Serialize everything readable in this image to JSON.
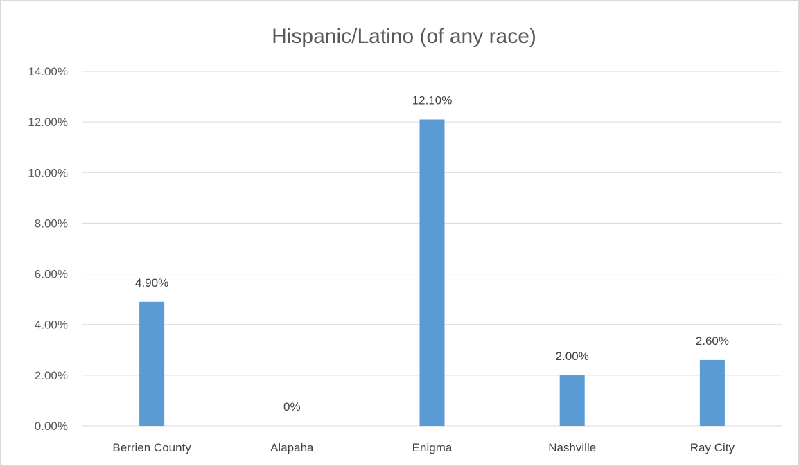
{
  "chart_data": {
    "type": "bar",
    "title": "Hispanic/Latino (of any race)",
    "categories": [
      "Berrien County",
      "Alapaha",
      "Enigma",
      "Nashville",
      "Ray City"
    ],
    "values": [
      4.9,
      0,
      12.1,
      2.0,
      2.6
    ],
    "data_labels": [
      "4.90%",
      "0%",
      "12.10%",
      "2.00%",
      "2.60%"
    ],
    "y_ticks": [
      "0.00%",
      "2.00%",
      "4.00%",
      "6.00%",
      "8.00%",
      "10.00%",
      "12.00%",
      "14.00%"
    ],
    "ylim": [
      0,
      14
    ],
    "y_step": 2,
    "grid": true,
    "legend": "none",
    "bar_color": "#5b9bd5",
    "grid_color": "#d9d9d9",
    "text_color": "#595959"
  }
}
